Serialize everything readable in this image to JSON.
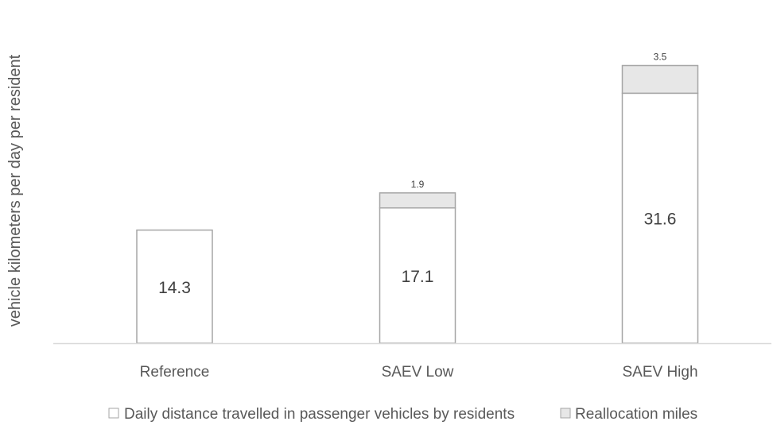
{
  "chart_data": {
    "type": "bar",
    "stacked": true,
    "title": "",
    "xlabel": "",
    "ylabel": "vehicle kilometers per day per resident",
    "categories": [
      "Reference",
      "SAEV Low",
      "SAEV High"
    ],
    "series": [
      {
        "name": "Daily distance travelled in passenger vehicles by residents",
        "values": [
          14.3,
          17.1,
          31.6
        ],
        "labels": [
          "14.3",
          "17.1",
          "31.6"
        ],
        "color": "#ffffff",
        "stroke": "#a6a6a6"
      },
      {
        "name": "Reallocation miles",
        "values": [
          null,
          1.9,
          3.5
        ],
        "labels": [
          "",
          "1.9",
          "3.5"
        ],
        "color": "#e7e7e7",
        "stroke": "#a6a6a6"
      }
    ],
    "ylim": [
      0,
      36
    ],
    "grid": false,
    "y_axis_visible": false,
    "legend_position": "bottom"
  }
}
